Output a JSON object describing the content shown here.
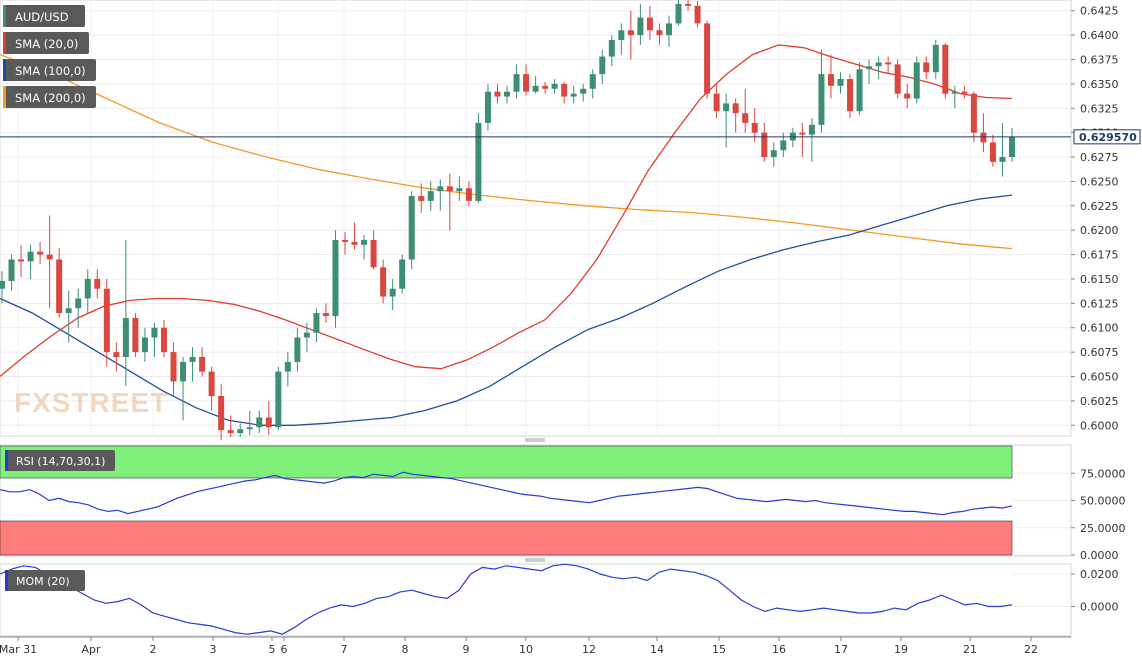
{
  "symbol": "AUD/USD",
  "watermark": "FXSTREET",
  "last_price": "0.629570",
  "colors": {
    "up": "#3e8e73",
    "down": "#d9473f",
    "sma20": "#e23b2e",
    "sma100": "#1f4fa0",
    "sma200": "#f39b24",
    "rsi_over": "#7ff07a",
    "rsi_under": "#ff7d7d",
    "rsi_line": "#2b39d8",
    "mom_line": "#2b39d8",
    "price_line": "#1e3a6b"
  },
  "legend": [
    "AUD/USD",
    "SMA (20,0)",
    "SMA (100,0)",
    "SMA (200,0)"
  ],
  "panes": {
    "rsi": {
      "label": "RSI (14,70,30,1)",
      "ticks": [
        "75.0000",
        "50.0000",
        "25.0000",
        "0.0000"
      ]
    },
    "mom": {
      "label": "MOM (20)",
      "ticks": [
        "0.0200",
        "0.0000"
      ]
    }
  },
  "chart_data": [
    {
      "type": "candlestick",
      "pair": "AUD/USD",
      "timeframe": "4h",
      "x_labels": [
        "Mar 31",
        "Apr",
        "2",
        "3",
        "5",
        "6",
        "7",
        "8",
        "9",
        "10",
        "12",
        "14",
        "15",
        "16",
        "17",
        "19",
        "21",
        "22"
      ],
      "y_ticks": [
        "0.6425",
        "0.6400",
        "0.6375",
        "0.6350",
        "0.6325",
        "0.6300",
        "0.6275",
        "0.6250",
        "0.6225",
        "0.6200",
        "0.6175",
        "0.6150",
        "0.6125",
        "0.6100",
        "0.6075",
        "0.6050",
        "0.6025",
        "0.6000"
      ],
      "ylim": [
        0.5989,
        0.6436
      ],
      "last_price": 0.62957,
      "ohlc": [
        [
          0.614,
          0.6158,
          0.6125,
          0.6148
        ],
        [
          0.6148,
          0.6175,
          0.6138,
          0.617
        ],
        [
          0.617,
          0.6185,
          0.6152,
          0.6168
        ],
        [
          0.6168,
          0.6185,
          0.615,
          0.6178
        ],
        [
          0.6178,
          0.6188,
          0.6165,
          0.6175
        ],
        [
          0.6175,
          0.6215,
          0.612,
          0.617
        ],
        [
          0.617,
          0.6182,
          0.611,
          0.6115
        ],
        [
          0.6115,
          0.6138,
          0.6085,
          0.612
        ],
        [
          0.612,
          0.614,
          0.61,
          0.613
        ],
        [
          0.613,
          0.616,
          0.6115,
          0.615
        ],
        [
          0.615,
          0.616,
          0.613,
          0.614
        ],
        [
          0.614,
          0.615,
          0.606,
          0.6075
        ],
        [
          0.6075,
          0.6085,
          0.6055,
          0.607
        ],
        [
          0.607,
          0.619,
          0.604,
          0.611
        ],
        [
          0.611,
          0.6115,
          0.607,
          0.6075
        ],
        [
          0.6075,
          0.61,
          0.6065,
          0.609
        ],
        [
          0.609,
          0.6105,
          0.607,
          0.61
        ],
        [
          0.61,
          0.6108,
          0.607,
          0.6075
        ],
        [
          0.6075,
          0.6085,
          0.603,
          0.6045
        ],
        [
          0.6045,
          0.607,
          0.6005,
          0.6065
        ],
        [
          0.6065,
          0.608,
          0.6045,
          0.607
        ],
        [
          0.607,
          0.608,
          0.605,
          0.6055
        ],
        [
          0.6055,
          0.606,
          0.6015,
          0.603
        ],
        [
          0.603,
          0.6042,
          0.5985,
          0.5995
        ],
        [
          0.5995,
          0.601,
          0.5988,
          0.5992
        ],
        [
          0.5992,
          0.6002,
          0.5988,
          0.5996
        ],
        [
          0.5996,
          0.6015,
          0.599,
          0.5998
        ],
        [
          0.5998,
          0.6015,
          0.5992,
          0.6008
        ],
        [
          0.6008,
          0.6025,
          0.599,
          0.5998
        ],
        [
          0.5998,
          0.606,
          0.5995,
          0.6055
        ],
        [
          0.6055,
          0.6075,
          0.604,
          0.6065
        ],
        [
          0.6065,
          0.61,
          0.6055,
          0.609
        ],
        [
          0.609,
          0.6105,
          0.6075,
          0.6095
        ],
        [
          0.6095,
          0.612,
          0.6085,
          0.6115
        ],
        [
          0.6115,
          0.6125,
          0.6105,
          0.6112
        ],
        [
          0.6112,
          0.62,
          0.61,
          0.619
        ],
        [
          0.619,
          0.6198,
          0.6175,
          0.6188
        ],
        [
          0.6188,
          0.6208,
          0.618,
          0.6185
        ],
        [
          0.6185,
          0.6195,
          0.617,
          0.619
        ],
        [
          0.619,
          0.62,
          0.616,
          0.6162
        ],
        [
          0.6162,
          0.617,
          0.6125,
          0.6132
        ],
        [
          0.6132,
          0.615,
          0.6118,
          0.614
        ],
        [
          0.614,
          0.6175,
          0.6135,
          0.617
        ],
        [
          0.617,
          0.624,
          0.616,
          0.6235
        ],
        [
          0.6235,
          0.6248,
          0.6218,
          0.623
        ],
        [
          0.623,
          0.625,
          0.622,
          0.624
        ],
        [
          0.624,
          0.6252,
          0.622,
          0.6245
        ],
        [
          0.6245,
          0.6258,
          0.62,
          0.624
        ],
        [
          0.624,
          0.6255,
          0.623,
          0.6243
        ],
        [
          0.6243,
          0.625,
          0.6225,
          0.623
        ],
        [
          0.623,
          0.632,
          0.6228,
          0.631
        ],
        [
          0.631,
          0.635,
          0.6302,
          0.6342
        ],
        [
          0.6342,
          0.635,
          0.633,
          0.6337
        ],
        [
          0.6337,
          0.6348,
          0.633,
          0.6342
        ],
        [
          0.6342,
          0.637,
          0.6335,
          0.636
        ],
        [
          0.636,
          0.637,
          0.6338,
          0.6342
        ],
        [
          0.6342,
          0.6358,
          0.634,
          0.6348
        ],
        [
          0.6348,
          0.6352,
          0.634,
          0.6345
        ],
        [
          0.6345,
          0.6355,
          0.634,
          0.635
        ],
        [
          0.635,
          0.6352,
          0.633,
          0.6337
        ],
        [
          0.6337,
          0.6348,
          0.633,
          0.634
        ],
        [
          0.634,
          0.635,
          0.6332,
          0.6345
        ],
        [
          0.6345,
          0.6365,
          0.6335,
          0.636
        ],
        [
          0.636,
          0.6385,
          0.635,
          0.6378
        ],
        [
          0.6378,
          0.64,
          0.6368,
          0.6395
        ],
        [
          0.6395,
          0.6412,
          0.638,
          0.6405
        ],
        [
          0.6405,
          0.6425,
          0.6375,
          0.64
        ],
        [
          0.64,
          0.6432,
          0.639,
          0.6418
        ],
        [
          0.6418,
          0.643,
          0.6395,
          0.6405
        ],
        [
          0.6405,
          0.6412,
          0.639,
          0.64
        ],
        [
          0.64,
          0.642,
          0.6388,
          0.6412
        ],
        [
          0.6412,
          0.6438,
          0.641,
          0.6432
        ],
        [
          0.6432,
          0.644,
          0.6425,
          0.643
        ],
        [
          0.643,
          0.6435,
          0.6408,
          0.6412
        ],
        [
          0.6412,
          0.6415,
          0.6335,
          0.634
        ],
        [
          0.634,
          0.635,
          0.6315,
          0.6322
        ],
        [
          0.6322,
          0.634,
          0.6285,
          0.633
        ],
        [
          0.633,
          0.6335,
          0.63,
          0.632
        ],
        [
          0.632,
          0.6345,
          0.63,
          0.631
        ],
        [
          0.631,
          0.6325,
          0.629,
          0.63
        ],
        [
          0.63,
          0.631,
          0.627,
          0.6275
        ],
        [
          0.6275,
          0.629,
          0.6265,
          0.6282
        ],
        [
          0.6282,
          0.63,
          0.6275,
          0.6292
        ],
        [
          0.6292,
          0.6305,
          0.6285,
          0.63
        ],
        [
          0.63,
          0.631,
          0.6275,
          0.6298
        ],
        [
          0.6298,
          0.6315,
          0.627,
          0.6308
        ],
        [
          0.6308,
          0.6385,
          0.63,
          0.636
        ],
        [
          0.636,
          0.638,
          0.6335,
          0.6348
        ],
        [
          0.6348,
          0.6362,
          0.634,
          0.6355
        ],
        [
          0.6355,
          0.636,
          0.6315,
          0.6322
        ],
        [
          0.6322,
          0.6372,
          0.6318,
          0.6365
        ],
        [
          0.6365,
          0.6375,
          0.635,
          0.6368
        ],
        [
          0.6368,
          0.6378,
          0.6355,
          0.6372
        ],
        [
          0.6372,
          0.6378,
          0.636,
          0.637
        ],
        [
          0.637,
          0.6375,
          0.6335,
          0.634
        ],
        [
          0.634,
          0.635,
          0.6325,
          0.6335
        ],
        [
          0.6335,
          0.6378,
          0.633,
          0.6372
        ],
        [
          0.6372,
          0.6378,
          0.6355,
          0.6362
        ],
        [
          0.6362,
          0.6395,
          0.6355,
          0.639
        ],
        [
          0.639,
          0.6392,
          0.6335,
          0.634
        ],
        [
          0.634,
          0.6348,
          0.6325,
          0.6342
        ],
        [
          0.6342,
          0.6348,
          0.6335,
          0.634
        ],
        [
          0.634,
          0.6342,
          0.629,
          0.63
        ],
        [
          0.63,
          0.632,
          0.628,
          0.629
        ],
        [
          0.629,
          0.6298,
          0.6265,
          0.627
        ],
        [
          0.627,
          0.631,
          0.6255,
          0.6275
        ],
        [
          0.6275,
          0.6305,
          0.627,
          0.62957
        ]
      ],
      "series": [
        {
          "name": "SMA (20,0)",
          "type": "line",
          "values": [
            0.605,
            0.6072,
            0.6092,
            0.611,
            0.6122,
            0.6128,
            0.613,
            0.613,
            0.6128,
            0.6124,
            0.6117,
            0.6108,
            0.6098,
            0.6088,
            0.6078,
            0.6068,
            0.606,
            0.6058,
            0.6067,
            0.608,
            0.6095,
            0.6108,
            0.6135,
            0.617,
            0.6215,
            0.6262,
            0.63,
            0.6335,
            0.636,
            0.638,
            0.639,
            0.6387,
            0.6378,
            0.637,
            0.6362,
            0.6357,
            0.635,
            0.634,
            0.6336,
            0.6335
          ]
        },
        {
          "name": "SMA (100,0)",
          "type": "line",
          "values": [
            0.613,
            0.6115,
            0.6095,
            0.6075,
            0.6055,
            0.6035,
            0.6018,
            0.6005,
            0.6,
            0.6,
            0.6002,
            0.6005,
            0.6008,
            0.6015,
            0.6025,
            0.604,
            0.606,
            0.608,
            0.6098,
            0.611,
            0.6125,
            0.6142,
            0.6158,
            0.617,
            0.618,
            0.6188,
            0.6195,
            0.6205,
            0.6215,
            0.6225,
            0.6232,
            0.6236
          ]
        },
        {
          "name": "SMA (200,0)",
          "type": "line",
          "values": [
            0.638,
            0.636,
            0.6335,
            0.631,
            0.629,
            0.6275,
            0.6262,
            0.6252,
            0.6243,
            0.6236,
            0.623,
            0.6225,
            0.6221,
            0.6218,
            0.6213,
            0.6207,
            0.62,
            0.6193,
            0.6186,
            0.6181
          ]
        }
      ]
    },
    {
      "type": "line",
      "name": "RSI (14,70,30,1)",
      "y_ticks": [
        "75.0000",
        "50.0000",
        "25.0000",
        "0.0000"
      ],
      "ylim": [
        0,
        100
      ],
      "overbought": 70,
      "oversold": 30,
      "values": [
        60,
        58,
        58,
        60,
        56,
        50,
        52,
        49,
        48,
        46,
        42,
        40,
        41,
        38,
        40,
        42,
        44,
        48,
        52,
        55,
        58,
        60,
        62,
        64,
        66,
        68,
        69,
        71,
        73,
        70,
        69,
        68,
        67,
        66,
        68,
        71,
        72,
        71,
        74,
        73,
        72,
        76,
        74,
        73,
        72,
        71,
        70,
        68,
        66,
        64,
        62,
        60,
        58,
        56,
        55,
        54,
        52,
        51,
        50,
        49,
        48,
        50,
        52,
        54,
        55,
        56,
        57,
        58,
        59,
        60,
        61,
        62,
        61,
        58,
        55,
        52,
        51,
        50,
        49,
        50,
        51,
        50,
        49,
        50,
        48,
        47,
        46,
        45,
        44,
        43,
        42,
        41,
        40,
        40,
        39,
        38,
        37,
        39,
        40,
        42,
        43,
        44,
        43,
        45
      ]
    },
    {
      "type": "line",
      "name": "MOM (20)",
      "y_ticks": [
        "0.0200",
        "0.0000"
      ],
      "ylim": [
        -0.0175,
        0.0255
      ],
      "values": [
        0.02,
        0.023,
        0.025,
        0.024,
        0.02,
        0.017,
        0.012,
        0.008,
        0.004,
        0.002,
        0.003,
        0.005,
        0.001,
        -0.004,
        -0.006,
        -0.008,
        -0.01,
        -0.011,
        -0.012,
        -0.014,
        -0.016,
        -0.017,
        -0.016,
        -0.015,
        -0.017,
        -0.013,
        -0.008,
        -0.004,
        -0.001,
        0.001,
        0.0,
        0.002,
        0.005,
        0.006,
        0.009,
        0.01,
        0.008,
        0.006,
        0.005,
        0.01,
        0.02,
        0.024,
        0.023,
        0.025,
        0.024,
        0.023,
        0.022,
        0.025,
        0.026,
        0.025,
        0.023,
        0.02,
        0.018,
        0.017,
        0.018,
        0.016,
        0.021,
        0.023,
        0.022,
        0.021,
        0.019,
        0.016,
        0.01,
        0.004,
        0.0,
        -0.003,
        -0.001,
        -0.002,
        -0.003,
        -0.002,
        -0.001,
        -0.002,
        -0.003,
        -0.004,
        -0.004,
        -0.003,
        -0.001,
        -0.002,
        0.002,
        0.004,
        0.007,
        0.004,
        0.001,
        0.002,
        0.0,
        0.0,
        0.001
      ]
    }
  ]
}
